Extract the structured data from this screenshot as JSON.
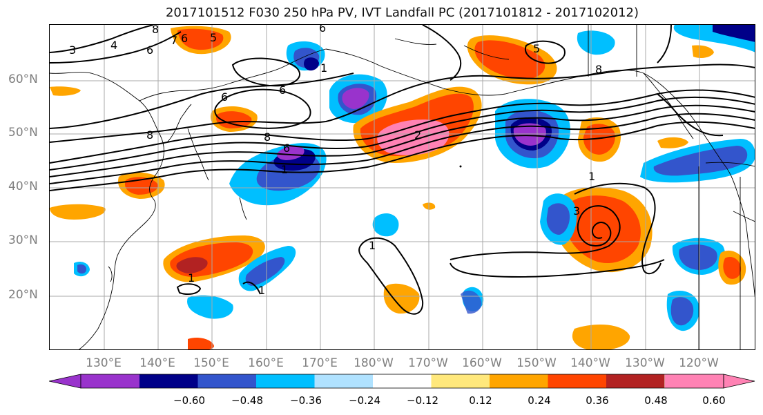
{
  "title": "2017101512 F030 250 hPa PV, IVT Landfall PC (2017101812 - 2017102012)",
  "lat_labels": [
    "60°N",
    "50°N",
    "40°N",
    "30°N",
    "20°N"
  ],
  "lon_labels": [
    "130°E",
    "140°E",
    "150°E",
    "160°E",
    "170°E",
    "180°W",
    "170°W",
    "160°W",
    "150°W",
    "140°W",
    "130°W",
    "120°W"
  ],
  "colorbar": {
    "colors": [
      "#9933cc",
      "#000088",
      "#3355cc",
      "#00bfff",
      "#b0e2ff",
      "#ffffff",
      "#ffe87c",
      "#ffa500",
      "#ff4500",
      "#b22222",
      "#ff82b4"
    ],
    "tick_labels": [
      "−0.60",
      "−0.48",
      "−0.36",
      "−0.24",
      "−0.12",
      "0.12",
      "0.24",
      "0.36",
      "0.48",
      "0.60"
    ]
  },
  "contour_labels": [
    "3",
    "4",
    "6",
    "8",
    "6",
    "7",
    "5",
    "6",
    "8",
    "1",
    "6",
    "8",
    "1",
    "6",
    "2",
    "6",
    "1",
    "3",
    "1",
    "1",
    "1",
    "5",
    "8"
  ],
  "colors": {
    "purple": "#9933cc",
    "navy": "#000088",
    "blue": "#3355cc",
    "cyan": "#00bfff",
    "lightblue": "#b0e2ff",
    "yellow": "#ffe87c",
    "orange": "#ffa500",
    "redorange": "#ff4500",
    "darkred": "#b22222",
    "pink": "#ff82b4"
  }
}
